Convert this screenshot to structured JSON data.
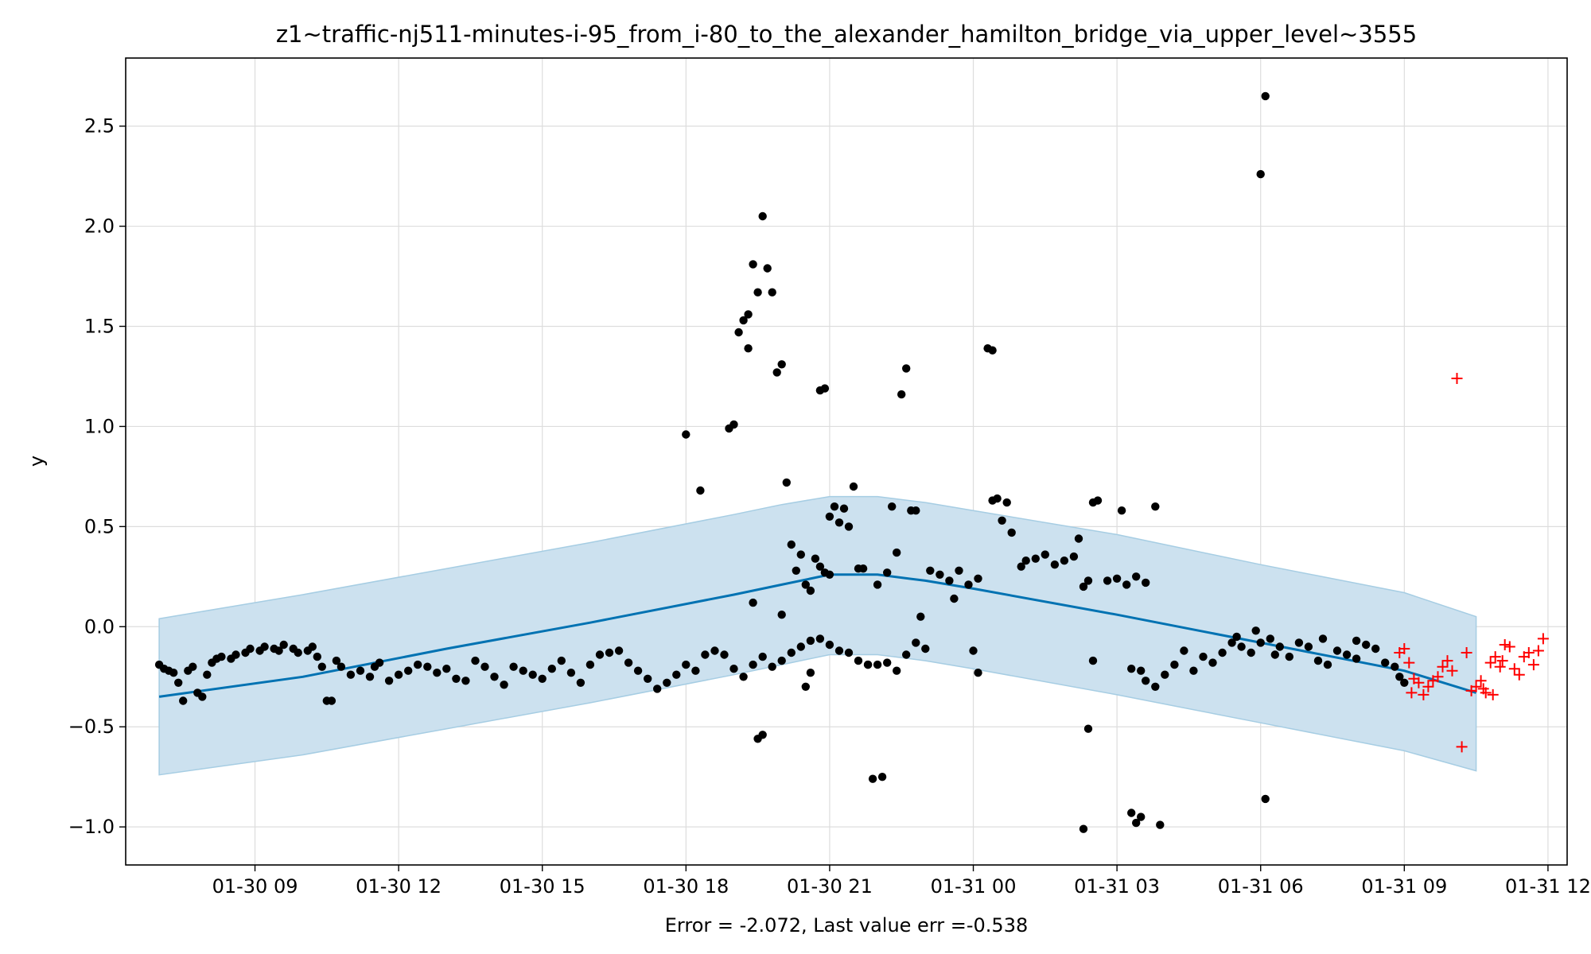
{
  "chart_data": {
    "type": "scatter",
    "title": "z1~traffic-nj511-minutes-i-95_from_i-80_to_the_alexander_hamilton_bridge_via_upper_level~3555",
    "xlabel": "Error = -2.072, Last value err =-0.538",
    "ylabel": "y",
    "x_unit": "hours since 01-30 00:00",
    "xlim": [
      6.3,
      36.4
    ],
    "ylim": [
      -1.19,
      2.84
    ],
    "grid": true,
    "x_ticks": [
      {
        "value": 9,
        "label": "01-30 09"
      },
      {
        "value": 12,
        "label": "01-30 12"
      },
      {
        "value": 15,
        "label": "01-30 15"
      },
      {
        "value": 18,
        "label": "01-30 18"
      },
      {
        "value": 21,
        "label": "01-30 21"
      },
      {
        "value": 24,
        "label": "01-31 00"
      },
      {
        "value": 27,
        "label": "01-31 03"
      },
      {
        "value": 30,
        "label": "01-31 06"
      },
      {
        "value": 33,
        "label": "01-31 09"
      },
      {
        "value": 36,
        "label": "01-31 12"
      }
    ],
    "y_ticks": [
      {
        "value": -1.0,
        "label": "−1.0"
      },
      {
        "value": -0.5,
        "label": "−0.5"
      },
      {
        "value": 0.0,
        "label": "0.0"
      },
      {
        "value": 0.5,
        "label": "0.5"
      },
      {
        "value": 1.0,
        "label": "1.0"
      },
      {
        "value": 1.5,
        "label": "1.5"
      },
      {
        "value": 2.0,
        "label": "2.0"
      },
      {
        "value": 2.5,
        "label": "2.5"
      }
    ],
    "colors": {
      "observed": "#000000",
      "forecast_line": "#0072b2",
      "band_fill": "#cce1ef",
      "band_edge": "#a6cde3",
      "future_points": "#ff0000",
      "grid": "#dddddd"
    },
    "forecast_line": {
      "x": [
        7.0,
        10.0,
        13.0,
        16.0,
        19.0,
        20.0,
        21.0,
        22.0,
        23.0,
        24.0,
        27.0,
        30.0,
        33.0,
        34.5
      ],
      "y": [
        -0.35,
        -0.25,
        -0.11,
        0.02,
        0.16,
        0.21,
        0.26,
        0.26,
        0.23,
        0.19,
        0.06,
        -0.08,
        -0.22,
        -0.33
      ]
    },
    "uncertainty_band": {
      "x": [
        7.0,
        10.0,
        13.0,
        16.0,
        19.0,
        20.0,
        21.0,
        22.0,
        23.0,
        24.0,
        27.0,
        30.0,
        33.0,
        34.5
      ],
      "upper": [
        0.04,
        0.16,
        0.29,
        0.42,
        0.56,
        0.61,
        0.65,
        0.65,
        0.62,
        0.58,
        0.46,
        0.31,
        0.17,
        0.05
      ],
      "lower": [
        -0.74,
        -0.64,
        -0.51,
        -0.38,
        -0.24,
        -0.19,
        -0.14,
        -0.14,
        -0.17,
        -0.21,
        -0.34,
        -0.48,
        -0.62,
        -0.72
      ]
    },
    "observed": [
      [
        7.0,
        -0.19
      ],
      [
        7.1,
        -0.21
      ],
      [
        7.2,
        -0.22
      ],
      [
        7.3,
        -0.23
      ],
      [
        7.4,
        -0.28
      ],
      [
        7.5,
        -0.37
      ],
      [
        7.6,
        -0.22
      ],
      [
        7.7,
        -0.2
      ],
      [
        7.8,
        -0.33
      ],
      [
        7.9,
        -0.35
      ],
      [
        8.0,
        -0.24
      ],
      [
        8.1,
        -0.18
      ],
      [
        8.2,
        -0.16
      ],
      [
        8.3,
        -0.15
      ],
      [
        8.5,
        -0.16
      ],
      [
        8.6,
        -0.14
      ],
      [
        8.8,
        -0.13
      ],
      [
        8.9,
        -0.11
      ],
      [
        9.1,
        -0.12
      ],
      [
        9.2,
        -0.1
      ],
      [
        9.4,
        -0.11
      ],
      [
        9.5,
        -0.12
      ],
      [
        9.6,
        -0.09
      ],
      [
        9.8,
        -0.11
      ],
      [
        9.9,
        -0.13
      ],
      [
        10.1,
        -0.12
      ],
      [
        10.2,
        -0.1
      ],
      [
        10.3,
        -0.15
      ],
      [
        10.4,
        -0.2
      ],
      [
        10.5,
        -0.37
      ],
      [
        10.6,
        -0.37
      ],
      [
        10.7,
        -0.17
      ],
      [
        10.8,
        -0.2
      ],
      [
        11.0,
        -0.24
      ],
      [
        11.2,
        -0.22
      ],
      [
        11.4,
        -0.25
      ],
      [
        11.5,
        -0.2
      ],
      [
        11.6,
        -0.18
      ],
      [
        11.8,
        -0.27
      ],
      [
        12.0,
        -0.24
      ],
      [
        12.2,
        -0.22
      ],
      [
        12.4,
        -0.19
      ],
      [
        12.6,
        -0.2
      ],
      [
        12.8,
        -0.23
      ],
      [
        13.0,
        -0.21
      ],
      [
        13.2,
        -0.26
      ],
      [
        13.4,
        -0.27
      ],
      [
        13.6,
        -0.17
      ],
      [
        13.8,
        -0.2
      ],
      [
        14.0,
        -0.25
      ],
      [
        14.2,
        -0.29
      ],
      [
        14.4,
        -0.2
      ],
      [
        14.6,
        -0.22
      ],
      [
        14.8,
        -0.24
      ],
      [
        15.0,
        -0.26
      ],
      [
        15.2,
        -0.21
      ],
      [
        15.4,
        -0.17
      ],
      [
        15.6,
        -0.23
      ],
      [
        15.8,
        -0.28
      ],
      [
        16.0,
        -0.19
      ],
      [
        16.2,
        -0.14
      ],
      [
        16.4,
        -0.13
      ],
      [
        16.6,
        -0.12
      ],
      [
        16.8,
        -0.18
      ],
      [
        17.0,
        -0.22
      ],
      [
        17.2,
        -0.26
      ],
      [
        17.4,
        -0.31
      ],
      [
        17.6,
        -0.28
      ],
      [
        17.8,
        -0.24
      ],
      [
        18.0,
        -0.19
      ],
      [
        18.2,
        -0.22
      ],
      [
        18.4,
        -0.14
      ],
      [
        18.6,
        -0.12
      ],
      [
        18.8,
        -0.14
      ],
      [
        19.0,
        -0.21
      ],
      [
        19.2,
        -0.25
      ],
      [
        19.4,
        -0.19
      ],
      [
        19.6,
        -0.15
      ],
      [
        19.8,
        -0.2
      ],
      [
        20.0,
        -0.17
      ],
      [
        20.2,
        -0.13
      ],
      [
        20.4,
        -0.1
      ],
      [
        20.6,
        -0.07
      ],
      [
        20.8,
        -0.06
      ],
      [
        21.0,
        -0.09
      ],
      [
        21.2,
        -0.12
      ],
      [
        21.4,
        -0.13
      ],
      [
        21.6,
        -0.17
      ],
      [
        21.8,
        -0.19
      ],
      [
        22.0,
        -0.19
      ],
      [
        22.2,
        -0.18
      ],
      [
        22.4,
        -0.22
      ],
      [
        22.6,
        -0.14
      ],
      [
        22.8,
        -0.08
      ],
      [
        18.0,
        0.96
      ],
      [
        18.3,
        0.68
      ],
      [
        18.9,
        0.99
      ],
      [
        19.0,
        1.01
      ],
      [
        19.1,
        1.47
      ],
      [
        19.2,
        1.53
      ],
      [
        19.3,
        1.39
      ],
      [
        19.3,
        1.56
      ],
      [
        19.4,
        1.81
      ],
      [
        19.5,
        1.67
      ],
      [
        19.6,
        2.05
      ],
      [
        19.7,
        1.79
      ],
      [
        19.8,
        1.67
      ],
      [
        19.9,
        1.27
      ],
      [
        20.0,
        1.31
      ],
      [
        19.4,
        0.12
      ],
      [
        19.5,
        -0.56
      ],
      [
        19.6,
        -0.54
      ],
      [
        20.1,
        0.72
      ],
      [
        20.2,
        0.41
      ],
      [
        20.3,
        0.28
      ],
      [
        20.4,
        0.36
      ],
      [
        20.5,
        0.21
      ],
      [
        20.6,
        0.18
      ],
      [
        20.7,
        0.34
      ],
      [
        20.8,
        0.3
      ],
      [
        20.9,
        0.27
      ],
      [
        21.0,
        0.26
      ],
      [
        20.0,
        0.06
      ],
      [
        20.5,
        -0.3
      ],
      [
        20.6,
        -0.23
      ],
      [
        20.8,
        1.18
      ],
      [
        20.9,
        1.19
      ],
      [
        21.0,
        0.55
      ],
      [
        21.1,
        0.6
      ],
      [
        21.2,
        0.52
      ],
      [
        21.3,
        0.59
      ],
      [
        21.4,
        0.5
      ],
      [
        21.5,
        0.7
      ],
      [
        21.6,
        0.29
      ],
      [
        21.7,
        0.29
      ],
      [
        21.8,
        -0.19
      ],
      [
        21.9,
        -0.76
      ],
      [
        22.1,
        -0.75
      ],
      [
        22.3,
        0.6
      ],
      [
        22.5,
        1.16
      ],
      [
        22.6,
        1.29
      ],
      [
        22.7,
        0.58
      ],
      [
        22.8,
        0.58
      ],
      [
        22.9,
        0.05
      ],
      [
        23.0,
        -0.11
      ],
      [
        22.4,
        0.37
      ],
      [
        22.0,
        0.21
      ],
      [
        22.2,
        0.27
      ],
      [
        23.1,
        0.28
      ],
      [
        23.3,
        0.26
      ],
      [
        23.5,
        0.23
      ],
      [
        23.7,
        0.28
      ],
      [
        23.9,
        0.21
      ],
      [
        24.1,
        0.24
      ],
      [
        23.6,
        0.14
      ],
      [
        24.4,
        0.63
      ],
      [
        24.5,
        0.64
      ],
      [
        24.6,
        0.53
      ],
      [
        24.7,
        0.62
      ],
      [
        24.3,
        1.39
      ],
      [
        24.4,
        1.38
      ],
      [
        24.8,
        0.47
      ],
      [
        25.0,
        0.3
      ],
      [
        25.1,
        0.33
      ],
      [
        25.3,
        0.34
      ],
      [
        25.5,
        0.36
      ],
      [
        25.7,
        0.31
      ],
      [
        25.9,
        0.33
      ],
      [
        26.1,
        0.35
      ],
      [
        26.2,
        0.44
      ],
      [
        26.3,
        0.2
      ],
      [
        26.4,
        0.23
      ],
      [
        26.5,
        0.62
      ],
      [
        26.6,
        0.63
      ],
      [
        26.5,
        -0.17
      ],
      [
        26.4,
        -0.51
      ],
      [
        26.3,
        -1.01
      ],
      [
        26.8,
        0.23
      ],
      [
        27.0,
        0.24
      ],
      [
        27.2,
        0.21
      ],
      [
        27.4,
        0.25
      ],
      [
        27.6,
        0.22
      ],
      [
        24.0,
        -0.12
      ],
      [
        24.1,
        -0.23
      ],
      [
        27.1,
        0.58
      ],
      [
        27.3,
        -0.93
      ],
      [
        27.4,
        -0.98
      ],
      [
        27.5,
        -0.95
      ],
      [
        27.9,
        -0.99
      ],
      [
        27.8,
        0.6
      ],
      [
        27.3,
        -0.21
      ],
      [
        27.5,
        -0.22
      ],
      [
        27.6,
        -0.27
      ],
      [
        27.8,
        -0.3
      ],
      [
        28.0,
        -0.24
      ],
      [
        28.2,
        -0.19
      ],
      [
        28.4,
        -0.12
      ],
      [
        28.6,
        -0.22
      ],
      [
        28.8,
        -0.15
      ],
      [
        29.0,
        -0.18
      ],
      [
        29.2,
        -0.13
      ],
      [
        29.4,
        -0.08
      ],
      [
        29.6,
        -0.1
      ],
      [
        29.8,
        -0.13
      ],
      [
        30.0,
        -0.08
      ],
      [
        30.2,
        -0.06
      ],
      [
        30.4,
        -0.1
      ],
      [
        30.6,
        -0.15
      ],
      [
        30.8,
        -0.08
      ],
      [
        31.0,
        -0.1
      ],
      [
        31.2,
        -0.17
      ],
      [
        31.4,
        -0.19
      ],
      [
        31.6,
        -0.12
      ],
      [
        31.8,
        -0.14
      ],
      [
        32.0,
        -0.16
      ],
      [
        32.2,
        -0.09
      ],
      [
        32.4,
        -0.11
      ],
      [
        32.6,
        -0.18
      ],
      [
        32.8,
        -0.2
      ],
      [
        32.9,
        -0.25
      ],
      [
        33.0,
        -0.28
      ],
      [
        29.9,
        -0.02
      ],
      [
        30.0,
        2.26
      ],
      [
        30.1,
        2.65
      ],
      [
        30.1,
        -0.86
      ],
      [
        30.3,
        -0.14
      ],
      [
        29.5,
        -0.05
      ],
      [
        31.3,
        -0.06
      ],
      [
        32.0,
        -0.07
      ]
    ],
    "future": [
      [
        32.9,
        -0.13
      ],
      [
        33.0,
        -0.11
      ],
      [
        33.1,
        -0.18
      ],
      [
        33.15,
        -0.33
      ],
      [
        33.2,
        -0.26
      ],
      [
        33.3,
        -0.28
      ],
      [
        33.4,
        -0.34
      ],
      [
        33.5,
        -0.3
      ],
      [
        33.6,
        -0.27
      ],
      [
        33.7,
        -0.25
      ],
      [
        33.8,
        -0.2
      ],
      [
        33.9,
        -0.17
      ],
      [
        34.0,
        -0.22
      ],
      [
        34.1,
        1.24
      ],
      [
        34.2,
        -0.6
      ],
      [
        34.3,
        -0.13
      ],
      [
        34.4,
        -0.32
      ],
      [
        34.5,
        -0.3
      ],
      [
        34.6,
        -0.27
      ],
      [
        34.7,
        -0.33
      ],
      [
        34.8,
        -0.18
      ],
      [
        34.9,
        -0.15
      ],
      [
        35.0,
        -0.2
      ],
      [
        35.1,
        -0.09
      ],
      [
        35.2,
        -0.1
      ],
      [
        35.3,
        -0.21
      ],
      [
        35.4,
        -0.24
      ],
      [
        35.5,
        -0.15
      ],
      [
        35.6,
        -0.13
      ],
      [
        35.7,
        -0.19
      ],
      [
        35.8,
        -0.12
      ],
      [
        35.9,
        -0.06
      ],
      [
        34.65,
        -0.31
      ],
      [
        34.85,
        -0.34
      ],
      [
        35.05,
        -0.17
      ]
    ]
  }
}
